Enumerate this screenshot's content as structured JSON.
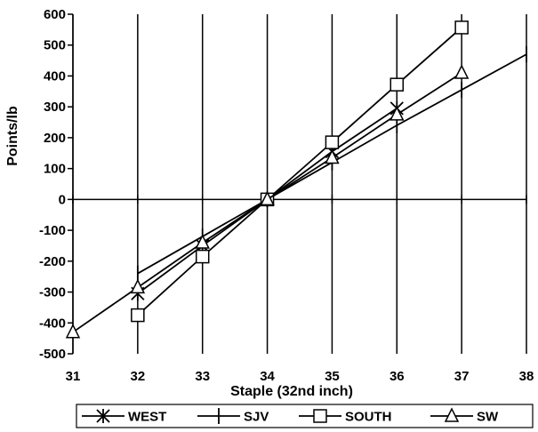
{
  "chart_data": {
    "type": "line",
    "title": "",
    "xlabel": "Staple (32nd inch)",
    "ylabel": "Points/lb",
    "xlim": [
      31,
      38
    ],
    "ylim": [
      -500,
      600
    ],
    "x_ticks": [
      31,
      32,
      33,
      34,
      35,
      36,
      37,
      38
    ],
    "y_ticks": [
      -500,
      -400,
      -300,
      -200,
      -100,
      0,
      100,
      200,
      300,
      400,
      500,
      600
    ],
    "grid": "vertical gridlines at each x tick",
    "legend_position": "bottom",
    "series": [
      {
        "name": "WEST",
        "marker": "asterisk",
        "color": "#000000",
        "x": [
          32,
          33,
          34,
          35,
          36
        ],
        "y": [
          -305,
          -150,
          0,
          155,
          295
        ]
      },
      {
        "name": "SJV",
        "marker": "vertical-bar",
        "color": "#000000",
        "x": [
          32,
          33,
          34,
          35,
          36,
          37,
          38
        ],
        "y": [
          -240,
          -120,
          0,
          120,
          240,
          355,
          470
        ]
      },
      {
        "name": "SOUTH",
        "marker": "square",
        "color": "#000000",
        "x": [
          32,
          33,
          34,
          35,
          36,
          37
        ],
        "y": [
          -375,
          -185,
          0,
          185,
          372,
          557
        ]
      },
      {
        "name": "SW",
        "marker": "triangle",
        "color": "#000000",
        "x": [
          31,
          32,
          33,
          34,
          35,
          36,
          37
        ],
        "y": [
          -430,
          -285,
          -140,
          0,
          135,
          275,
          410
        ]
      }
    ]
  }
}
